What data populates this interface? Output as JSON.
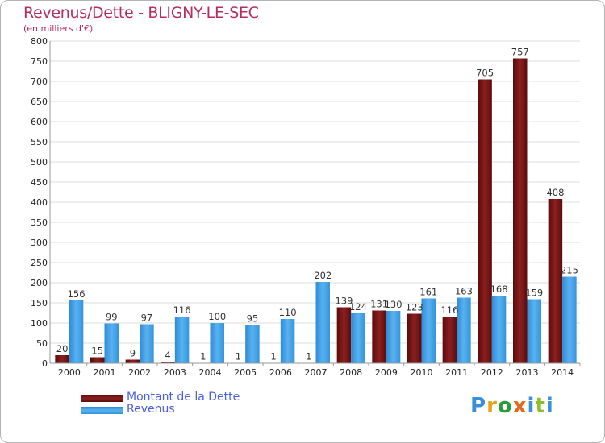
{
  "title": "Revenus/Dette - BLIGNY-LE-SEC",
  "subtitle": "(en milliers d'€)",
  "logo": {
    "text": "Proxiti",
    "colors": [
      "#3a8fd8",
      "#e8a21b",
      "#2a9a3a",
      "#e36a1c",
      "#3a8fd8",
      "#8cbf2a",
      "#3a8fd8"
    ]
  },
  "colors": {
    "dette": "#7a1515",
    "revenus": "#3d9ee5",
    "title": "#b72e5e",
    "legend_text": "#4a5fe0"
  },
  "chart_data": {
    "type": "bar",
    "categories": [
      "2000",
      "2001",
      "2002",
      "2003",
      "2004",
      "2005",
      "2006",
      "2007",
      "2008",
      "2009",
      "2010",
      "2011",
      "2012",
      "2013",
      "2014"
    ],
    "series": [
      {
        "name": "Montant de la Dette",
        "values": [
          20,
          15,
          9,
          4,
          1,
          1,
          1,
          1,
          139,
          131,
          123,
          116,
          705,
          757,
          408
        ]
      },
      {
        "name": "Revenus",
        "values": [
          156,
          99,
          97,
          116,
          100,
          95,
          110,
          202,
          124,
          130,
          161,
          163,
          168,
          159,
          215
        ]
      }
    ],
    "ylim": [
      0,
      800
    ],
    "yticks": [
      0,
      50,
      100,
      150,
      200,
      250,
      300,
      350,
      400,
      450,
      500,
      550,
      600,
      650,
      700,
      750,
      800
    ],
    "grid": true,
    "legend": "bottom-left"
  }
}
